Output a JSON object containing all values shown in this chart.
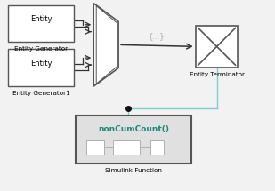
{
  "bg_color": "#f2f2f2",
  "block_bg": "#ffffff",
  "block_border": "#555555",
  "title_color": "#000000",
  "teal_color": "#1a8a7a",
  "light_gray": "#b0b0b0",
  "arrow_color": "#333333",
  "signal_line_color": "#7dcfcf",
  "dot_color": "#111111",
  "curly_label": "{...}",
  "curly_color": "#aaaaaa",
  "eg1_label": "Entity",
  "eg1_sublabel": "Entity Generator",
  "eg2_label": "Entity",
  "eg2_sublabel": "Entity Generator1",
  "et_label": "Entity Terminator",
  "fb_label": "nonCumCount()",
  "fb_sublabel": "Simulink Function"
}
